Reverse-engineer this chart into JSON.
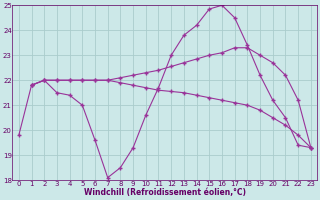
{
  "xlabel": "Windchill (Refroidissement éolien,°C)",
  "line1": {
    "x": [
      0,
      1,
      2,
      3,
      4,
      5,
      6,
      7,
      8,
      9,
      10,
      11,
      12,
      13,
      14,
      15,
      16,
      17,
      18,
      19,
      20,
      21,
      22,
      23
    ],
    "y": [
      19.8,
      21.8,
      22.0,
      21.5,
      21.4,
      21.0,
      19.6,
      18.1,
      18.5,
      19.3,
      20.6,
      21.7,
      23.0,
      23.8,
      24.2,
      24.85,
      25.0,
      24.5,
      23.4,
      22.2,
      21.2,
      20.5,
      19.4,
      19.3
    ]
  },
  "line2": {
    "x": [
      1,
      2,
      3,
      4,
      5,
      6,
      7,
      8,
      9,
      10,
      11,
      12,
      13,
      14,
      15,
      16,
      17,
      18,
      19,
      20,
      21,
      22,
      23
    ],
    "y": [
      21.8,
      22.0,
      22.0,
      22.0,
      22.0,
      22.0,
      22.0,
      22.1,
      22.2,
      22.3,
      22.4,
      22.55,
      22.7,
      22.85,
      23.0,
      23.1,
      23.3,
      23.3,
      23.0,
      22.7,
      22.2,
      21.2,
      19.3
    ]
  },
  "line3": {
    "x": [
      1,
      2,
      3,
      4,
      5,
      6,
      7,
      8,
      9,
      10,
      11,
      12,
      13,
      14,
      15,
      16,
      17,
      18,
      19,
      20,
      21,
      22,
      23
    ],
    "y": [
      21.8,
      22.0,
      22.0,
      22.0,
      22.0,
      22.0,
      22.0,
      21.9,
      21.8,
      21.7,
      21.6,
      21.55,
      21.5,
      21.4,
      21.3,
      21.2,
      21.1,
      21.0,
      20.8,
      20.5,
      20.2,
      19.8,
      19.3
    ]
  },
  "ylim": [
    18,
    25
  ],
  "xlim": [
    -0.5,
    23.5
  ],
  "yticks": [
    18,
    19,
    20,
    21,
    22,
    23,
    24,
    25
  ],
  "xticks": [
    0,
    1,
    2,
    3,
    4,
    5,
    6,
    7,
    8,
    9,
    10,
    11,
    12,
    13,
    14,
    15,
    16,
    17,
    18,
    19,
    20,
    21,
    22,
    23
  ],
  "bg_color": "#cce8e8",
  "grid_color": "#aacccc",
  "text_color": "#660066",
  "tick_color": "#660066",
  "line_color": "#993399"
}
